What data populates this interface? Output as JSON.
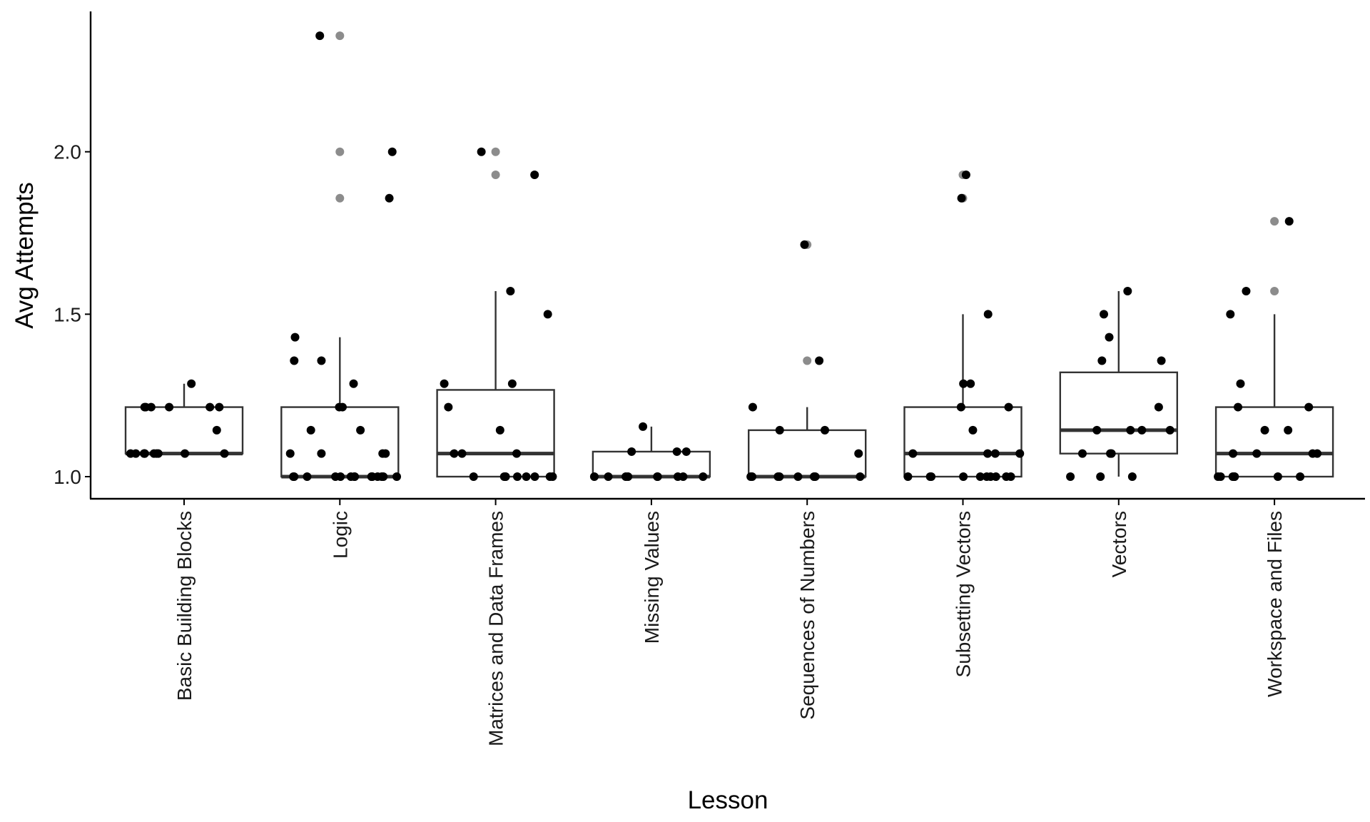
{
  "chart_data": {
    "type": "boxplot",
    "xlabel": "Lesson",
    "ylabel": "Avg Attempts",
    "ylim": [
      0.93,
      2.44
    ],
    "yticks": [
      1.0,
      1.5,
      2.0
    ],
    "ytick_labels": [
      "1.0",
      "1.5",
      "2.0"
    ],
    "grid": false,
    "categories": [
      "Basic Building Blocks",
      "Logic",
      "Matrices and Data Frames",
      "Missing Values",
      "Sequences of Numbers",
      "Subsetting Vectors",
      "Vectors",
      "Workspace and Files"
    ],
    "boxes": [
      {
        "category": "Basic Building Blocks",
        "q1": 1.071,
        "median": 1.071,
        "q3": 1.214,
        "whisker_low": 1.071,
        "whisker_high": 1.286,
        "outliers": []
      },
      {
        "category": "Logic",
        "q1": 1.0,
        "median": 1.0,
        "q3": 1.214,
        "whisker_low": 1.0,
        "whisker_high": 1.429,
        "outliers": [
          2.357,
          2.0,
          1.857
        ]
      },
      {
        "category": "Matrices and Data Frames",
        "q1": 1.0,
        "median": 1.071,
        "q3": 1.267,
        "whisker_low": 1.0,
        "whisker_high": 1.571,
        "outliers": [
          2.0,
          1.929
        ]
      },
      {
        "category": "Missing Values",
        "q1": 1.0,
        "median": 1.0,
        "q3": 1.077,
        "whisker_low": 1.0,
        "whisker_high": 1.154,
        "outliers": []
      },
      {
        "category": "Sequences of Numbers",
        "q1": 1.0,
        "median": 1.0,
        "q3": 1.143,
        "whisker_low": 1.0,
        "whisker_high": 1.214,
        "outliers": [
          1.714,
          1.357
        ]
      },
      {
        "category": "Subsetting Vectors",
        "q1": 1.0,
        "median": 1.071,
        "q3": 1.214,
        "whisker_low": 1.0,
        "whisker_high": 1.5,
        "outliers": [
          1.929,
          1.857
        ]
      },
      {
        "category": "Vectors",
        "q1": 1.071,
        "median": 1.143,
        "q3": 1.321,
        "whisker_low": 1.0,
        "whisker_high": 1.571,
        "outliers": []
      },
      {
        "category": "Workspace and Files",
        "q1": 1.0,
        "median": 1.071,
        "q3": 1.214,
        "whisker_low": 1.0,
        "whisker_high": 1.5,
        "outliers": [
          1.786,
          1.571
        ]
      }
    ],
    "jitter_points": [
      {
        "category": "Basic Building Blocks",
        "values": [
          1.071,
          1.071,
          1.071,
          1.071,
          1.071,
          1.071,
          1.071,
          1.071,
          1.071,
          1.071,
          1.214,
          1.214,
          1.214,
          1.214,
          1.214,
          1.214,
          1.286,
          1.143
        ]
      },
      {
        "category": "Logic",
        "values": [
          2.357,
          2.0,
          1.857,
          1.429,
          1.357,
          1.357,
          1.286,
          1.214,
          1.214,
          1.143,
          1.143,
          1.071,
          1.071,
          1.071,
          1.071,
          1.0,
          1.0,
          1.0,
          1.0,
          1.0,
          1.0,
          1.0,
          1.0,
          1.0,
          1.0,
          1.0,
          1.0,
          1.0,
          1.0,
          1.0
        ]
      },
      {
        "category": "Matrices and Data Frames",
        "values": [
          2.0,
          1.929,
          1.571,
          1.5,
          1.286,
          1.286,
          1.214,
          1.143,
          1.071,
          1.071,
          1.071,
          1.0,
          1.0,
          1.0,
          1.0,
          1.0,
          1.0,
          1.0,
          1.0,
          1.0
        ]
      },
      {
        "category": "Missing Values",
        "values": [
          1.154,
          1.077,
          1.077,
          1.077,
          1.0,
          1.0,
          1.0,
          1.0,
          1.0,
          1.0,
          1.0,
          1.0,
          1.0
        ]
      },
      {
        "category": "Sequences of Numbers",
        "values": [
          1.714,
          1.357,
          1.214,
          1.143,
          1.143,
          1.071,
          1.0,
          1.0,
          1.0,
          1.0,
          1.0,
          1.0,
          1.0,
          1.0
        ]
      },
      {
        "category": "Subsetting Vectors",
        "values": [
          1.929,
          1.857,
          1.5,
          1.286,
          1.286,
          1.214,
          1.214,
          1.143,
          1.071,
          1.071,
          1.071,
          1.071,
          1.0,
          1.0,
          1.0,
          1.0,
          1.0,
          1.0,
          1.0,
          1.0,
          1.0,
          1.0
        ]
      },
      {
        "category": "Vectors",
        "values": [
          1.571,
          1.5,
          1.429,
          1.357,
          1.357,
          1.214,
          1.143,
          1.143,
          1.143,
          1.143,
          1.071,
          1.071,
          1.071,
          1.0,
          1.0,
          1.0
        ]
      },
      {
        "category": "Workspace and Files",
        "values": [
          1.786,
          1.571,
          1.5,
          1.286,
          1.214,
          1.214,
          1.143,
          1.143,
          1.071,
          1.071,
          1.071,
          1.071,
          1.0,
          1.0,
          1.0,
          1.0,
          1.0,
          1.0,
          1.0
        ]
      }
    ]
  }
}
